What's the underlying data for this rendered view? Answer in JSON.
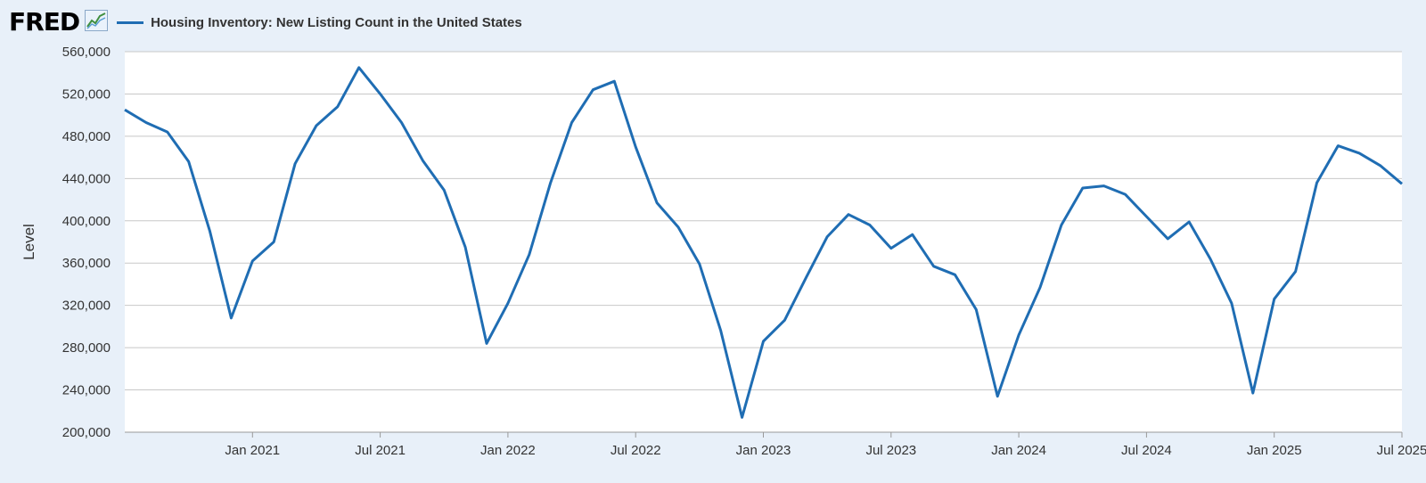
{
  "header": {
    "logo_text": "FRED",
    "logo_icon": "line-chart-icon"
  },
  "chart_data": {
    "type": "line",
    "title": "",
    "xlabel": "",
    "ylabel": "Level",
    "legend_placement": "top-left",
    "grid": true,
    "ylim": [
      200000,
      560000
    ],
    "yticks": [
      200000,
      240000,
      280000,
      320000,
      360000,
      400000,
      440000,
      480000,
      520000,
      560000
    ],
    "ytick_labels": [
      "200,000",
      "240,000",
      "280,000",
      "320,000",
      "360,000",
      "400,000",
      "440,000",
      "480,000",
      "520,000",
      "560,000"
    ],
    "xlim": [
      "2020-07",
      "2025-07"
    ],
    "xticks": [
      "2021-01",
      "2021-07",
      "2022-01",
      "2022-07",
      "2023-01",
      "2023-07",
      "2024-01",
      "2024-07",
      "2025-01",
      "2025-07"
    ],
    "xtick_labels": [
      "Jan 2021",
      "Jul 2021",
      "Jan 2022",
      "Jul 2022",
      "Jan 2023",
      "Jul 2023",
      "Jan 2024",
      "Jul 2024",
      "Jan 2025",
      "Jul 2025"
    ],
    "series": [
      {
        "name": "Housing Inventory: New Listing Count in the United States",
        "color": "#1f6db3",
        "x": [
          "2020-07",
          "2020-08",
          "2020-09",
          "2020-10",
          "2020-11",
          "2020-12",
          "2021-01",
          "2021-02",
          "2021-03",
          "2021-04",
          "2021-05",
          "2021-06",
          "2021-07",
          "2021-08",
          "2021-09",
          "2021-10",
          "2021-11",
          "2021-12",
          "2022-01",
          "2022-02",
          "2022-03",
          "2022-04",
          "2022-05",
          "2022-06",
          "2022-07",
          "2022-08",
          "2022-09",
          "2022-10",
          "2022-11",
          "2022-12",
          "2023-01",
          "2023-02",
          "2023-03",
          "2023-04",
          "2023-05",
          "2023-06",
          "2023-07",
          "2023-08",
          "2023-09",
          "2023-10",
          "2023-11",
          "2023-12",
          "2024-01",
          "2024-02",
          "2024-03",
          "2024-04",
          "2024-05",
          "2024-06",
          "2024-07",
          "2024-08",
          "2024-09",
          "2024-10",
          "2024-11",
          "2024-12",
          "2025-01",
          "2025-02",
          "2025-03",
          "2025-04",
          "2025-05",
          "2025-06",
          "2025-07"
        ],
        "values": [
          505000,
          493000,
          484000,
          456000,
          390000,
          308000,
          362000,
          380000,
          454000,
          490000,
          508000,
          545000,
          520000,
          493000,
          457000,
          429000,
          375000,
          284000,
          322000,
          368000,
          436000,
          493000,
          524000,
          532000,
          470000,
          417000,
          394000,
          359000,
          296000,
          214000,
          286000,
          306000,
          346000,
          385000,
          406000,
          396000,
          374000,
          387000,
          357000,
          349000,
          316000,
          234000,
          292000,
          337000,
          396000,
          431000,
          433000,
          425000,
          404000,
          383000,
          399000,
          364000,
          322000,
          237000,
          326000,
          352000,
          436000,
          471000,
          464000,
          452000,
          435000
        ]
      }
    ]
  }
}
